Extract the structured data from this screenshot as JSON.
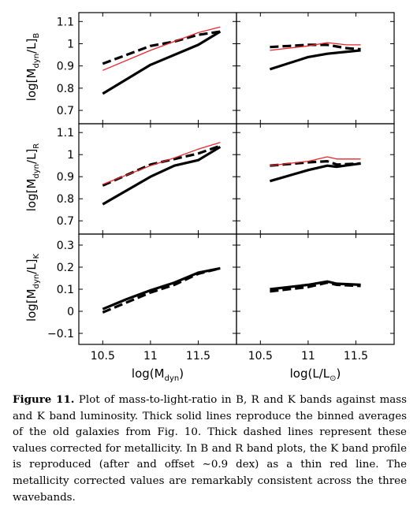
{
  "caption": {
    "label": "Figure 11.",
    "text": "Plot of mass-to-light-ratio in B, R and K bands against mass and K band luminosity. Thick solid lines reproduce the binned averages of the old galaxies from Fig. 10. Thick dashed lines represent these values corrected for metallicity. In B and R band plots, the K band profile is reproduced (after and offset ∼0.9 dex) as a thin red line. The metallicity corrected values are remarkably consistent across the three wavebands."
  },
  "axes": {
    "x_left": {
      "prefix": "log(M",
      "sub": "dyn",
      "suffix": ")"
    },
    "x_right": {
      "prefix": "log(L/L",
      "sub": "⊙",
      "suffix": ")"
    },
    "y_rows": [
      {
        "prefix": "log[M",
        "sub1": "dyn",
        "mid": "/L]",
        "sub2": "B"
      },
      {
        "prefix": "log[M",
        "sub1": "dyn",
        "mid": "/L]",
        "sub2": "R"
      },
      {
        "prefix": "log[M",
        "sub1": "dyn",
        "mid": "/L]",
        "sub2": "K"
      }
    ]
  },
  "chart_data": {
    "type": "line",
    "grid": false,
    "series_styles": {
      "solid": {
        "color": "#000000",
        "dash": "none",
        "width": "thick"
      },
      "dashed": {
        "color": "#000000",
        "dash": "long-dash",
        "width": "thick"
      },
      "red": {
        "color": "#e8262b",
        "dash": "none",
        "width": "thin"
      }
    },
    "x_axes": [
      {
        "column": "left",
        "range": [
          10.25,
          11.9
        ],
        "ticks": [
          10.5,
          11,
          11.5
        ],
        "tick_labels": [
          "10.5",
          "11",
          "11.5"
        ]
      },
      {
        "column": "right",
        "range": [
          10.25,
          11.9
        ],
        "ticks": [
          10.5,
          11,
          11.5
        ],
        "tick_labels": [
          "10.5",
          "11",
          "11.5"
        ]
      }
    ],
    "panels": [
      {
        "band": "B",
        "column": "left",
        "row": 0,
        "ylim": [
          0.64,
          1.14
        ],
        "yticks": [
          0.7,
          0.8,
          0.9,
          1,
          1.1
        ],
        "ytick_labels": [
          "0.7",
          "0.8",
          "0.9",
          "1",
          "1.1"
        ],
        "series": [
          {
            "style": "solid",
            "x": [
              10.5,
              11.0,
              11.5,
              11.73
            ],
            "y": [
              0.775,
              0.905,
              0.995,
              1.055
            ]
          },
          {
            "style": "dashed",
            "x": [
              10.5,
              10.75,
              11.0,
              11.25,
              11.5,
              11.73
            ],
            "y": [
              0.91,
              0.95,
              0.99,
              1.01,
              1.04,
              1.055
            ]
          },
          {
            "style": "red",
            "x": [
              10.5,
              11.0,
              11.5,
              11.73
            ],
            "y": [
              0.88,
              0.97,
              1.05,
              1.075
            ]
          }
        ]
      },
      {
        "band": "B",
        "column": "right",
        "row": 0,
        "ylim": [
          0.64,
          1.14
        ],
        "yticks": [
          0.7,
          0.8,
          0.9,
          1,
          1.1
        ],
        "ytick_labels": [],
        "series": [
          {
            "style": "solid",
            "x": [
              10.6,
              11.0,
              11.2,
              11.55
            ],
            "y": [
              0.885,
              0.94,
              0.955,
              0.97
            ]
          },
          {
            "style": "dashed",
            "x": [
              10.6,
              10.8,
              11.0,
              11.2,
              11.4,
              11.55
            ],
            "y": [
              0.985,
              0.99,
              0.995,
              0.995,
              0.98,
              0.975
            ]
          },
          {
            "style": "red",
            "x": [
              10.6,
              11.0,
              11.2,
              11.4,
              11.55
            ],
            "y": [
              0.97,
              0.99,
              1.005,
              0.995,
              0.995
            ]
          }
        ]
      },
      {
        "band": "R",
        "column": "left",
        "row": 1,
        "ylim": [
          0.64,
          1.14
        ],
        "yticks": [
          0.7,
          0.8,
          0.9,
          1,
          1.1
        ],
        "ytick_labels": [
          "0.7",
          "0.8",
          "0.9",
          "1",
          "1.1"
        ],
        "series": [
          {
            "style": "solid",
            "x": [
              10.5,
              11.0,
              11.25,
              11.5,
              11.73
            ],
            "y": [
              0.775,
              0.9,
              0.95,
              0.975,
              1.035
            ]
          },
          {
            "style": "dashed",
            "x": [
              10.5,
              11.0,
              11.25,
              11.5,
              11.73
            ],
            "y": [
              0.86,
              0.955,
              0.98,
              1.005,
              1.04
            ]
          },
          {
            "style": "red",
            "x": [
              10.5,
              11.0,
              11.25,
              11.5,
              11.73
            ],
            "y": [
              0.865,
              0.95,
              0.985,
              1.025,
              1.055
            ]
          }
        ]
      },
      {
        "band": "R",
        "column": "right",
        "row": 1,
        "ylim": [
          0.64,
          1.14
        ],
        "yticks": [
          0.7,
          0.8,
          0.9,
          1,
          1.1
        ],
        "ytick_labels": [],
        "series": [
          {
            "style": "solid",
            "x": [
              10.6,
              11.0,
              11.2,
              11.3,
              11.55
            ],
            "y": [
              0.88,
              0.93,
              0.95,
              0.945,
              0.96
            ]
          },
          {
            "style": "dashed",
            "x": [
              10.6,
              11.0,
              11.2,
              11.3,
              11.55
            ],
            "y": [
              0.95,
              0.965,
              0.97,
              0.955,
              0.96
            ]
          },
          {
            "style": "red",
            "x": [
              10.6,
              11.0,
              11.2,
              11.3,
              11.55
            ],
            "y": [
              0.95,
              0.97,
              0.99,
              0.98,
              0.98
            ]
          }
        ]
      },
      {
        "band": "K",
        "column": "left",
        "row": 2,
        "ylim": [
          -0.15,
          0.35
        ],
        "yticks": [
          -0.1,
          0,
          0.1,
          0.2,
          0.3
        ],
        "ytick_labels": [
          "−0.1",
          "0",
          "0.1",
          "0.2",
          "0.3"
        ],
        "series": [
          {
            "style": "solid",
            "x": [
              10.5,
              10.75,
              11.0,
              11.25,
              11.5,
              11.73
            ],
            "y": [
              0.01,
              0.055,
              0.095,
              0.13,
              0.175,
              0.195
            ]
          },
          {
            "style": "dashed",
            "x": [
              10.5,
              10.75,
              11.0,
              11.25,
              11.5,
              11.73
            ],
            "y": [
              -0.005,
              0.04,
              0.085,
              0.12,
              0.17,
              0.195
            ]
          }
        ]
      },
      {
        "band": "K",
        "column": "right",
        "row": 2,
        "ylim": [
          -0.15,
          0.35
        ],
        "yticks": [
          -0.1,
          0,
          0.1,
          0.2,
          0.3
        ],
        "ytick_labels": [],
        "series": [
          {
            "style": "solid",
            "x": [
              10.6,
              11.0,
              11.2,
              11.3,
              11.55
            ],
            "y": [
              0.1,
              0.12,
              0.135,
              0.125,
              0.12
            ]
          },
          {
            "style": "dashed",
            "x": [
              10.6,
              11.0,
              11.2,
              11.3,
              11.55
            ],
            "y": [
              0.09,
              0.11,
              0.13,
              0.12,
              0.115
            ]
          }
        ]
      }
    ]
  }
}
